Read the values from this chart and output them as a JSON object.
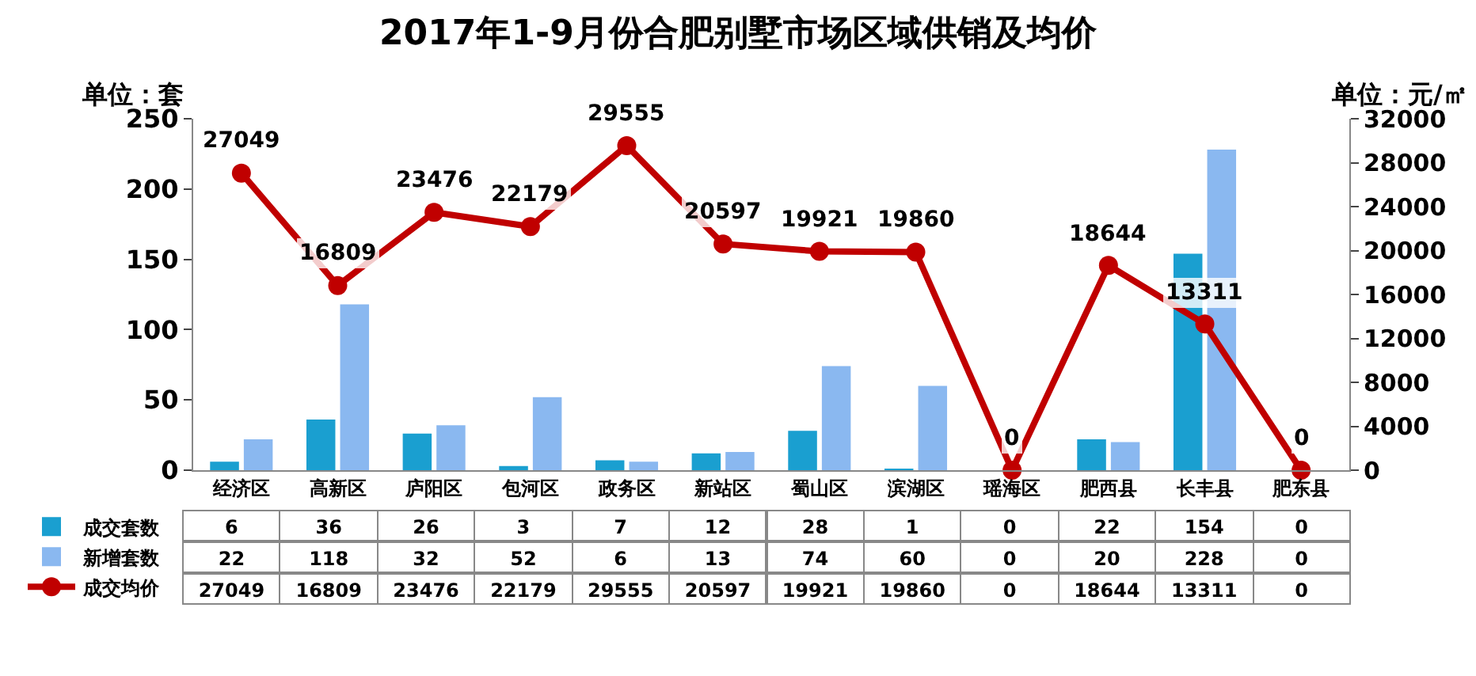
{
  "chart_data": {
    "type": "bar",
    "title": "2017年1-9月份合肥别墅市场区域供销及均价",
    "ylabel": "单位：套",
    "y2label": "单位：元/㎡",
    "categories": [
      "经济区",
      "高新区",
      "庐阳区",
      "包河区",
      "政务区",
      "新站区",
      "蜀山区",
      "滨湖区",
      "瑶海区",
      "肥西县",
      "长丰县",
      "肥东县"
    ],
    "series": [
      {
        "name": "成交套数",
        "type": "bar",
        "color": "#1a9fd0",
        "values": [
          6,
          36,
          26,
          3,
          7,
          12,
          28,
          1,
          0,
          22,
          154,
          0
        ]
      },
      {
        "name": "新增套数",
        "type": "bar",
        "color": "#8ab8f0",
        "values": [
          22,
          118,
          32,
          52,
          6,
          13,
          74,
          60,
          0,
          20,
          228,
          0
        ]
      },
      {
        "name": "成交均价",
        "type": "line",
        "axis": "y2",
        "color": "#c00000",
        "marker": "circle",
        "values": [
          27049,
          16809,
          23476,
          22179,
          29555,
          20597,
          19921,
          19860,
          0,
          18644,
          13311,
          0
        ]
      }
    ],
    "annotations": [
      "27049",
      "16809",
      "23476",
      "22179",
      "29555",
      "20597",
      "19921",
      "19860",
      "0",
      "18644",
      "13311",
      "0"
    ],
    "ylim": [
      0,
      250
    ],
    "yticks": [
      0,
      50,
      100,
      150,
      200,
      250
    ],
    "y2lim": [
      0,
      32000
    ],
    "y2ticks": [
      0,
      4000,
      8000,
      12000,
      16000,
      20000,
      24000,
      28000,
      32000
    ],
    "grid": false,
    "legend": "bottom left",
    "data_labels": true
  }
}
